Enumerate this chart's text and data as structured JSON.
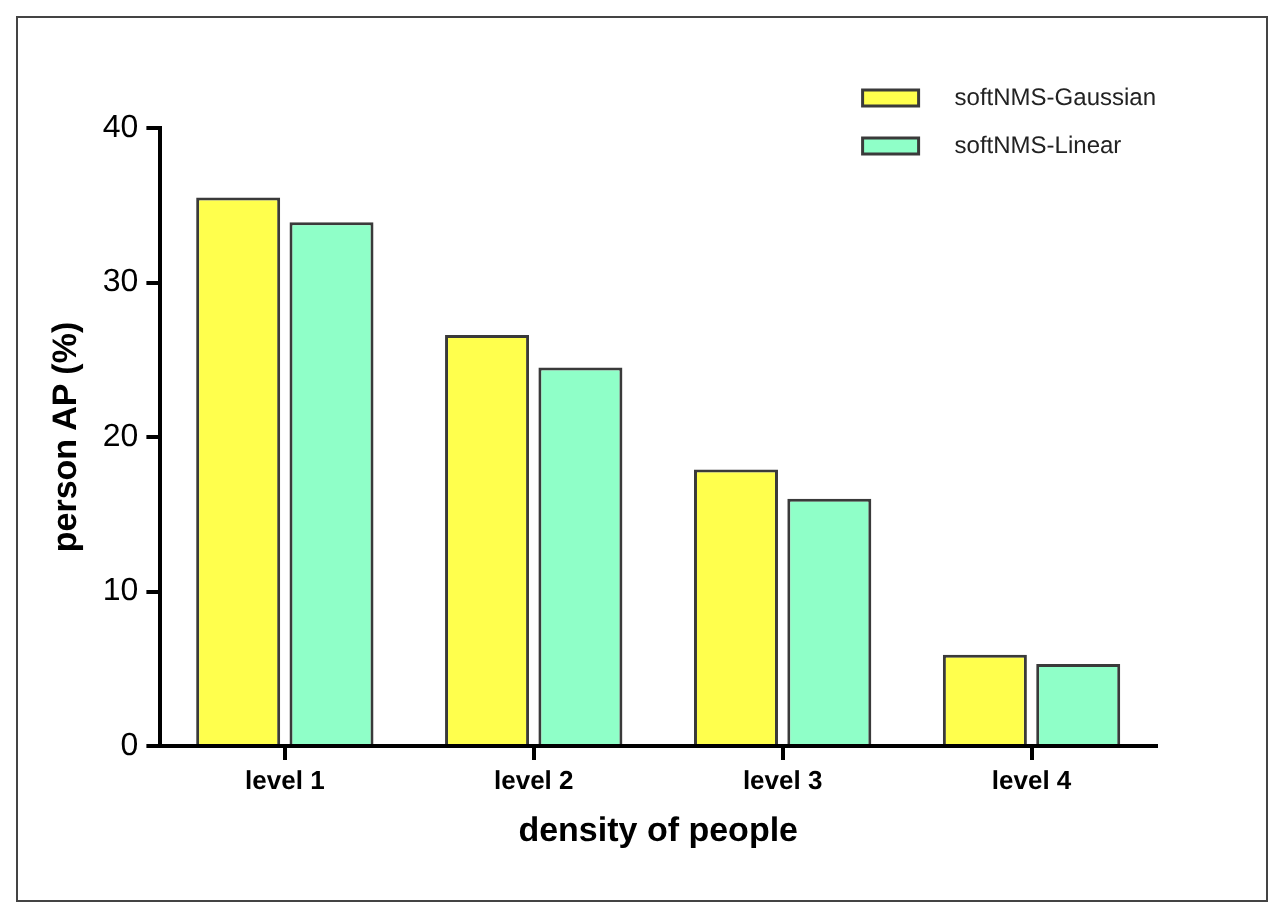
{
  "chart_data": {
    "type": "bar",
    "xlabel": "density of people",
    "ylabel": "person AP (%)",
    "categories": [
      "level 1",
      "level 2",
      "level 3",
      "level 4"
    ],
    "series": [
      {
        "name": "softNMS-Gaussian",
        "color": "#ffff4d",
        "values": [
          35.5,
          26.6,
          17.9,
          5.9
        ]
      },
      {
        "name": "softNMS-Linear",
        "color": "#8fffc8",
        "values": [
          33.9,
          24.5,
          16.0,
          5.3
        ]
      }
    ],
    "ylim": [
      0,
      40
    ],
    "yticks": [
      0,
      10,
      20,
      30,
      40
    ],
    "grid": false,
    "legend": "top right"
  }
}
